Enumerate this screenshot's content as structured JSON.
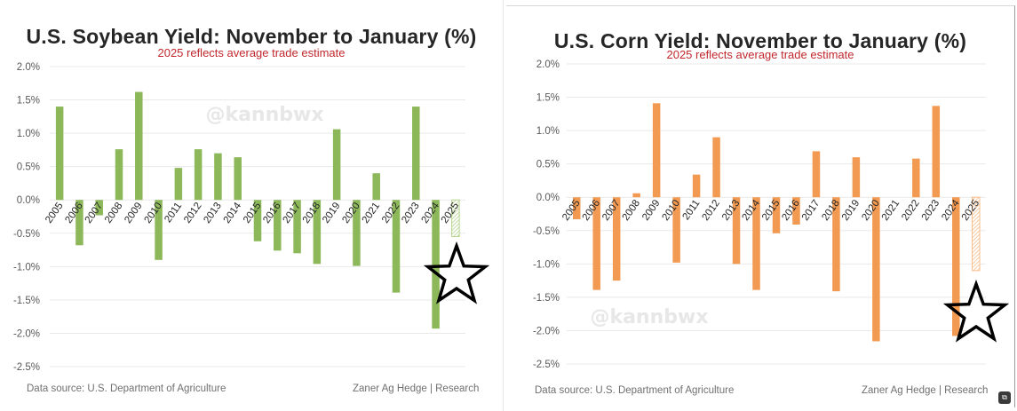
{
  "charts": {
    "soybean": {
      "title": "U.S. Soybean Yield: November to January (%)",
      "subtitle": "2025 reflects average trade estimate",
      "watermark": "@kannbwx",
      "source": "Data source: U.S. Department of Agriculture",
      "credit": "Zaner Ag Hedge | Research",
      "bar_color": "#8db85a",
      "estimate_color": "#b6d48e"
    },
    "corn": {
      "title": "U.S. Corn Yield: November to January (%)",
      "subtitle": "2025 reflects average trade estimate",
      "watermark": "@kannbwx",
      "source": "Data source: U.S. Department of Agriculture",
      "credit": "Zaner Ag Hedge | Research",
      "bar_color": "#f39a52",
      "estimate_color": "#f7bd8b"
    }
  },
  "chart_data": [
    {
      "type": "bar",
      "title": "U.S. Soybean Yield: November to January (%)",
      "subtitle": "2025 reflects average trade estimate",
      "xlabel": "",
      "ylabel": "",
      "ylim": [
        -2.5,
        2.0
      ],
      "yticks": [
        2.0,
        1.5,
        1.0,
        0.5,
        0.0,
        -0.5,
        -1.0,
        -1.5,
        -2.0,
        -2.5
      ],
      "ytick_labels": [
        "2.0%",
        "1.5%",
        "1.0%",
        "0.5%",
        "0.0%",
        "-0.5%",
        "-1.0%",
        "-1.5%",
        "-2.0%",
        "-2.5%"
      ],
      "grid": true,
      "categories": [
        "2005",
        "2006",
        "2007",
        "2008",
        "2009",
        "2010",
        "2011",
        "2012",
        "2013",
        "2014",
        "2015",
        "2016",
        "2017",
        "2018",
        "2019",
        "2020",
        "2021",
        "2022",
        "2023",
        "2024",
        "2025"
      ],
      "values": [
        1.4,
        -0.68,
        -0.23,
        0.76,
        1.62,
        -0.9,
        0.48,
        0.76,
        0.7,
        0.64,
        -0.62,
        -0.76,
        -0.8,
        -0.96,
        1.06,
        -0.99,
        0.4,
        -1.39,
        1.4,
        -1.93,
        -0.55
      ],
      "estimate_category": "2025",
      "annotations": [
        "star marker near 2025 bar"
      ]
    },
    {
      "type": "bar",
      "title": "U.S. Corn Yield: November to January (%)",
      "subtitle": "2025 reflects average trade estimate",
      "xlabel": "",
      "ylabel": "",
      "ylim": [
        -2.5,
        2.0
      ],
      "yticks": [
        2.0,
        1.5,
        1.0,
        0.5,
        0.0,
        -0.5,
        -1.0,
        -1.5,
        -2.0,
        -2.5
      ],
      "ytick_labels": [
        "2.0%",
        "1.5%",
        "1.0%",
        "0.5%",
        "0.0%",
        "-0.5%",
        "-1.0%",
        "-1.5%",
        "-2.0%",
        "-2.5%"
      ],
      "grid": true,
      "categories": [
        "2005",
        "2006",
        "2007",
        "2008",
        "2009",
        "2010",
        "2011",
        "2012",
        "2013",
        "2014",
        "2015",
        "2016",
        "2017",
        "2018",
        "2019",
        "2020",
        "2021",
        "2022",
        "2023",
        "2024",
        "2025"
      ],
      "values": [
        -0.33,
        -1.39,
        -1.25,
        0.06,
        1.41,
        -0.98,
        0.34,
        0.9,
        -1.0,
        -1.39,
        -0.54,
        -0.41,
        0.69,
        -1.41,
        0.6,
        -2.16,
        0.0,
        0.58,
        1.37,
        -2.08,
        -1.1
      ],
      "estimate_category": "2025",
      "annotations": [
        "star marker near 2025 bar"
      ]
    }
  ]
}
